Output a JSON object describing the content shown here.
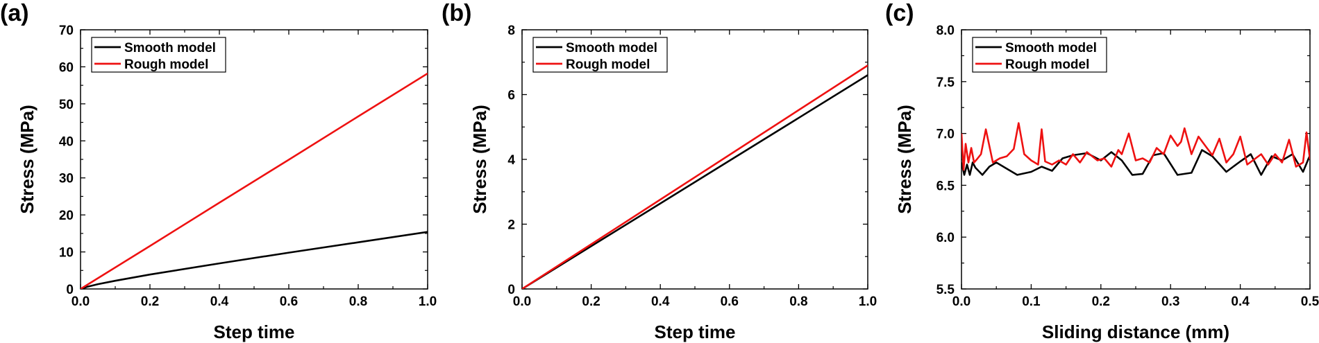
{
  "figure": {
    "panels": [
      "(a)",
      "(b)",
      "(c)"
    ]
  },
  "colors": {
    "smooth": "#000000",
    "rough": "#ee1111",
    "axis": "#000000"
  },
  "chart_data": [
    {
      "type": "line",
      "panel": "(a)",
      "title": "",
      "xlabel": "Step time",
      "ylabel": "Stress (MPa)",
      "xlim": [
        0.0,
        1.0
      ],
      "ylim": [
        0,
        70
      ],
      "xticks": [
        "0.0",
        "0.2",
        "0.4",
        "0.6",
        "0.8",
        "1.0"
      ],
      "yticks": [
        "0",
        "10",
        "20",
        "30",
        "40",
        "50",
        "60",
        "70"
      ],
      "legend_position": "top-left",
      "series": [
        {
          "name": "Smooth model",
          "color": "#000000",
          "x": [
            0.0,
            0.02,
            0.05,
            0.1,
            0.2,
            0.4,
            0.6,
            0.8,
            1.0
          ],
          "y": [
            0.0,
            0.6,
            1.3,
            2.2,
            3.9,
            6.9,
            9.8,
            12.6,
            15.4
          ]
        },
        {
          "name": "Rough model",
          "color": "#ee1111",
          "x": [
            0.0,
            0.2,
            0.4,
            0.6,
            0.8,
            1.0
          ],
          "y": [
            0.0,
            11.6,
            23.3,
            34.9,
            46.6,
            58.2
          ]
        }
      ]
    },
    {
      "type": "line",
      "panel": "(b)",
      "title": "",
      "xlabel": "Step time",
      "ylabel": "Stress (MPa)",
      "xlim": [
        0.0,
        1.0
      ],
      "ylim": [
        0,
        8
      ],
      "xticks": [
        "0.0",
        "0.2",
        "0.4",
        "0.6",
        "0.8",
        "1.0"
      ],
      "yticks": [
        "0",
        "2",
        "4",
        "6",
        "8"
      ],
      "legend_position": "top-left",
      "series": [
        {
          "name": "Smooth model",
          "color": "#000000",
          "x": [
            0.0,
            0.2,
            0.4,
            0.6,
            0.8,
            1.0
          ],
          "y": [
            0.0,
            1.32,
            2.64,
            3.96,
            5.28,
            6.6
          ]
        },
        {
          "name": "Rough model",
          "color": "#ee1111",
          "x": [
            0.0,
            0.2,
            0.4,
            0.6,
            0.8,
            1.0
          ],
          "y": [
            0.0,
            1.38,
            2.76,
            4.14,
            5.52,
            6.9
          ]
        }
      ]
    },
    {
      "type": "line",
      "panel": "(c)",
      "title": "",
      "xlabel": "Sliding distance (mm)",
      "ylabel": "Stress (MPa)",
      "xlim": [
        0.0,
        0.5
      ],
      "ylim": [
        5.5,
        8.0
      ],
      "xticks": [
        "0.0",
        "0.1",
        "0.2",
        "0.3",
        "0.4",
        "0.5"
      ],
      "yticks": [
        "5.5",
        "6.0",
        "6.5",
        "7.0",
        "7.5",
        "8.0"
      ],
      "legend_position": "top-left",
      "series": [
        {
          "name": "Smooth model",
          "color": "#000000",
          "x": [
            0.0,
            0.004,
            0.008,
            0.012,
            0.016,
            0.02,
            0.03,
            0.04,
            0.05,
            0.065,
            0.08,
            0.1,
            0.115,
            0.13,
            0.145,
            0.16,
            0.18,
            0.2,
            0.215,
            0.23,
            0.245,
            0.26,
            0.275,
            0.29,
            0.31,
            0.33,
            0.345,
            0.36,
            0.38,
            0.4,
            0.415,
            0.43,
            0.445,
            0.46,
            0.475,
            0.49,
            0.5
          ],
          "y": [
            6.72,
            6.6,
            6.7,
            6.6,
            6.72,
            6.67,
            6.6,
            6.68,
            6.72,
            6.66,
            6.6,
            6.63,
            6.68,
            6.64,
            6.76,
            6.79,
            6.81,
            6.74,
            6.82,
            6.74,
            6.6,
            6.61,
            6.79,
            6.81,
            6.6,
            6.62,
            6.84,
            6.78,
            6.63,
            6.73,
            6.8,
            6.6,
            6.78,
            6.74,
            6.8,
            6.63,
            6.79
          ]
        },
        {
          "name": "Rough model",
          "color": "#ee1111",
          "x": [
            0.0,
            0.003,
            0.006,
            0.01,
            0.014,
            0.018,
            0.022,
            0.028,
            0.035,
            0.045,
            0.055,
            0.065,
            0.075,
            0.082,
            0.09,
            0.1,
            0.11,
            0.115,
            0.12,
            0.13,
            0.14,
            0.15,
            0.16,
            0.17,
            0.18,
            0.195,
            0.205,
            0.215,
            0.225,
            0.23,
            0.24,
            0.25,
            0.26,
            0.27,
            0.28,
            0.29,
            0.3,
            0.31,
            0.315,
            0.32,
            0.33,
            0.34,
            0.35,
            0.36,
            0.37,
            0.38,
            0.39,
            0.4,
            0.41,
            0.42,
            0.43,
            0.44,
            0.45,
            0.46,
            0.47,
            0.48,
            0.49,
            0.495,
            0.5
          ],
          "y": [
            7.0,
            6.65,
            6.9,
            6.72,
            6.86,
            6.72,
            6.75,
            6.8,
            7.04,
            6.72,
            6.76,
            6.78,
            6.85,
            7.1,
            6.8,
            6.74,
            6.7,
            7.04,
            6.73,
            6.7,
            6.74,
            6.7,
            6.8,
            6.72,
            6.82,
            6.74,
            6.76,
            6.68,
            6.84,
            6.8,
            7.0,
            6.74,
            6.76,
            6.72,
            6.86,
            6.8,
            6.98,
            6.88,
            6.92,
            7.05,
            6.8,
            6.97,
            6.88,
            6.79,
            6.95,
            6.72,
            6.8,
            6.97,
            6.7,
            6.75,
            6.8,
            6.7,
            6.8,
            6.72,
            6.94,
            6.68,
            6.72,
            7.01,
            6.75
          ]
        }
      ]
    }
  ]
}
